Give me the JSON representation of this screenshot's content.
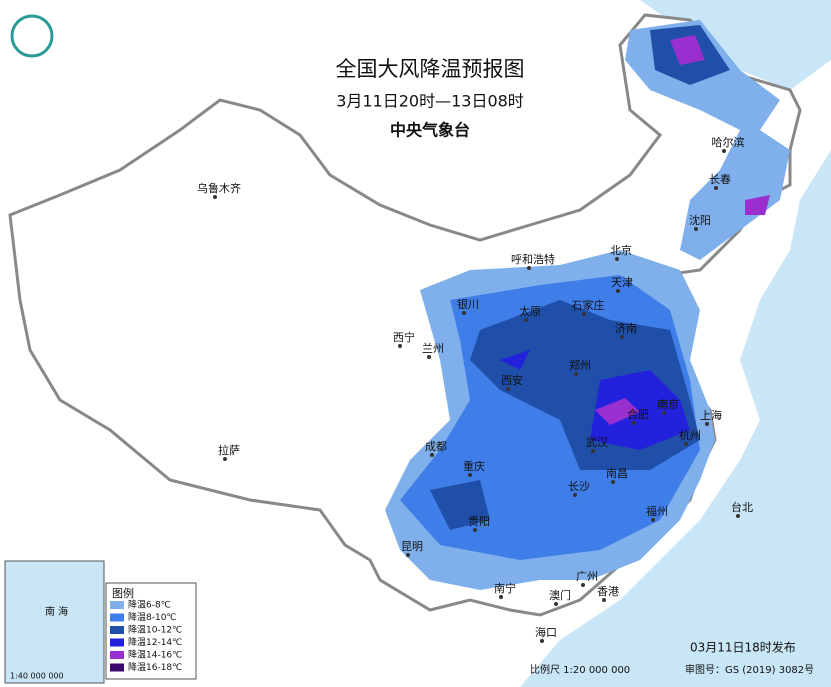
{
  "title": "全国大风降温预报图",
  "subtitle": "3月11日20时—13日08时",
  "issuer": "中央气象台",
  "cities": [
    "乌鲁木齐",
    "哈尔滨",
    "长春",
    "沈阳",
    "呼和浩特",
    "北京",
    "天津",
    "银川",
    "太原",
    "石家庄",
    "济南",
    "西宁",
    "兰州",
    "西安",
    "郑州",
    "合肥",
    "南京",
    "上海",
    "武汉",
    "杭州",
    "成都",
    "重庆",
    "长沙",
    "南昌",
    "拉萨",
    "贵阳",
    "昆明",
    "福州",
    "台北",
    "南宁",
    "广州",
    "澳门",
    "香港",
    "海口"
  ],
  "legend": {
    "title": "图例",
    "items": [
      {
        "label": "降温6-8℃",
        "color": "#7fb0ec"
      },
      {
        "label": "降温8-10℃",
        "color": "#3f7ee8"
      },
      {
        "label": "降温10-12℃",
        "color": "#1f4fa8"
      },
      {
        "label": "降温12-14℃",
        "color": "#2222dd"
      },
      {
        "label": "降温14-16℃",
        "color": "#9a2fd0"
      },
      {
        "label": "降温16-18℃",
        "color": "#3a0a6e"
      }
    ]
  },
  "inset": {
    "sea": "南 海",
    "scale": "1:40 000 000"
  },
  "footer": {
    "issued": "03月11日18时发布",
    "scale": "比例尺 1:20 000 000",
    "review_no": "审图号：GS (2019) 3082号"
  }
}
